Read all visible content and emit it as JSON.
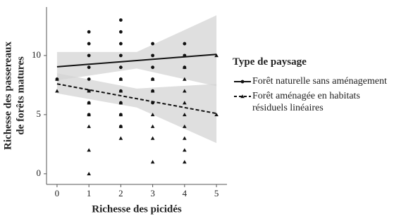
{
  "chart_data": {
    "type": "scatter",
    "x_label": "Richesse des picidés",
    "y_label": [
      "Richesse des passereaux",
      "de forêts matures"
    ],
    "legend_title": "Type de paysage",
    "xlim": [
      -0.33,
      5.33
    ],
    "ylim": [
      -0.9,
      14.1
    ],
    "xticks": [
      0,
      1,
      2,
      3,
      4,
      5
    ],
    "yticks": [
      0,
      5,
      10
    ],
    "band_color": "#d4d4d4",
    "series": [
      {
        "name": "Forêt naturelle sans aménagement",
        "marker": "circle",
        "color": "#111111",
        "line_style": "solid",
        "x": [
          0,
          1,
          1,
          1,
          1,
          1,
          1,
          1,
          1,
          2,
          2,
          2,
          2,
          2,
          2,
          2,
          2,
          2,
          2,
          3,
          3,
          3,
          3,
          3,
          3,
          4,
          4,
          4
        ],
        "values": [
          8,
          12,
          11,
          10,
          9,
          8,
          7,
          6,
          5,
          13,
          12,
          11,
          10,
          9,
          8,
          7,
          6,
          5,
          4,
          11,
          10,
          9,
          8,
          7,
          6,
          11,
          10,
          9
        ],
        "fit": {
          "x": [
            0,
            5
          ],
          "values": [
            9.05,
            10.1
          ]
        },
        "band": {
          "x": [
            0,
            2.5,
            5
          ],
          "lower": [
            7.9,
            8.9,
            7.4
          ],
          "upper": [
            10.3,
            10.3,
            13.4
          ]
        }
      },
      {
        "name": "Forêt aménagée en habitats résiduels linéaires",
        "marker": "triangle",
        "color": "#111111",
        "line_style": "dashed",
        "x": [
          0,
          0,
          1,
          1,
          1,
          1,
          1,
          1,
          2,
          2,
          2,
          2,
          2,
          2,
          3,
          3,
          3,
          3,
          3,
          3,
          4,
          4,
          4,
          4,
          4,
          4,
          4,
          4,
          4,
          5,
          5
        ],
        "values": [
          8,
          7,
          7,
          6,
          5,
          4,
          2,
          0,
          8,
          7,
          6,
          5,
          4,
          3,
          8,
          7,
          5,
          4,
          3,
          1,
          9,
          8,
          7,
          6,
          5,
          4,
          3,
          2,
          1,
          10,
          5
        ],
        "fit": {
          "x": [
            0,
            5
          ],
          "values": [
            7.6,
            5.1
          ]
        },
        "band": {
          "x": [
            0,
            2.5,
            5
          ],
          "lower": [
            6.8,
            5.6,
            2.6
          ],
          "upper": [
            8.5,
            7.2,
            7.6
          ]
        }
      }
    ]
  }
}
